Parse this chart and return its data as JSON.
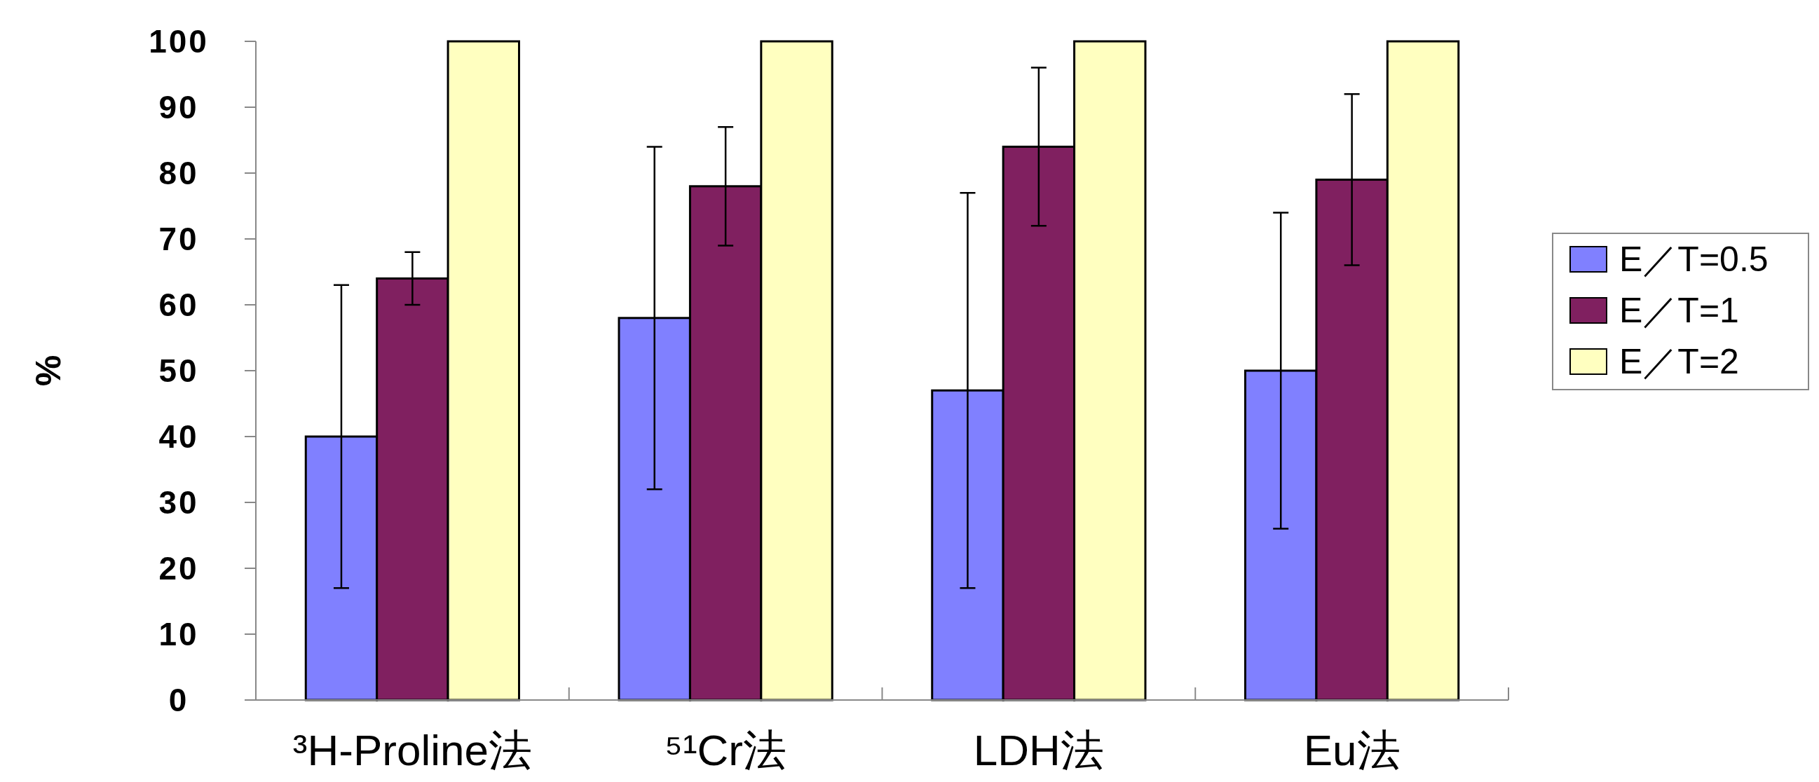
{
  "chart_data": {
    "type": "bar",
    "categories": [
      "³H-Proline法",
      "⁵¹Cr法",
      "LDH法",
      "Eu法"
    ],
    "series": [
      {
        "name": "E／T=0.5",
        "color": "#8080ff",
        "values": [
          40,
          58,
          47,
          50
        ],
        "errors": [
          23,
          26,
          30,
          24
        ]
      },
      {
        "name": "E／T=1",
        "color": "#802060",
        "values": [
          64,
          78,
          84,
          79
        ],
        "errors": [
          4,
          9,
          12,
          13
        ]
      },
      {
        "name": "E／T=2",
        "color": "#ffffc0",
        "values": [
          100,
          100,
          100,
          100
        ]
      }
    ],
    "ylabel": "%",
    "ylim": [
      0,
      100
    ],
    "yticks": [
      0,
      10,
      20,
      30,
      40,
      50,
      60,
      70,
      80,
      90,
      100
    ],
    "grid": false,
    "legend": "right"
  }
}
